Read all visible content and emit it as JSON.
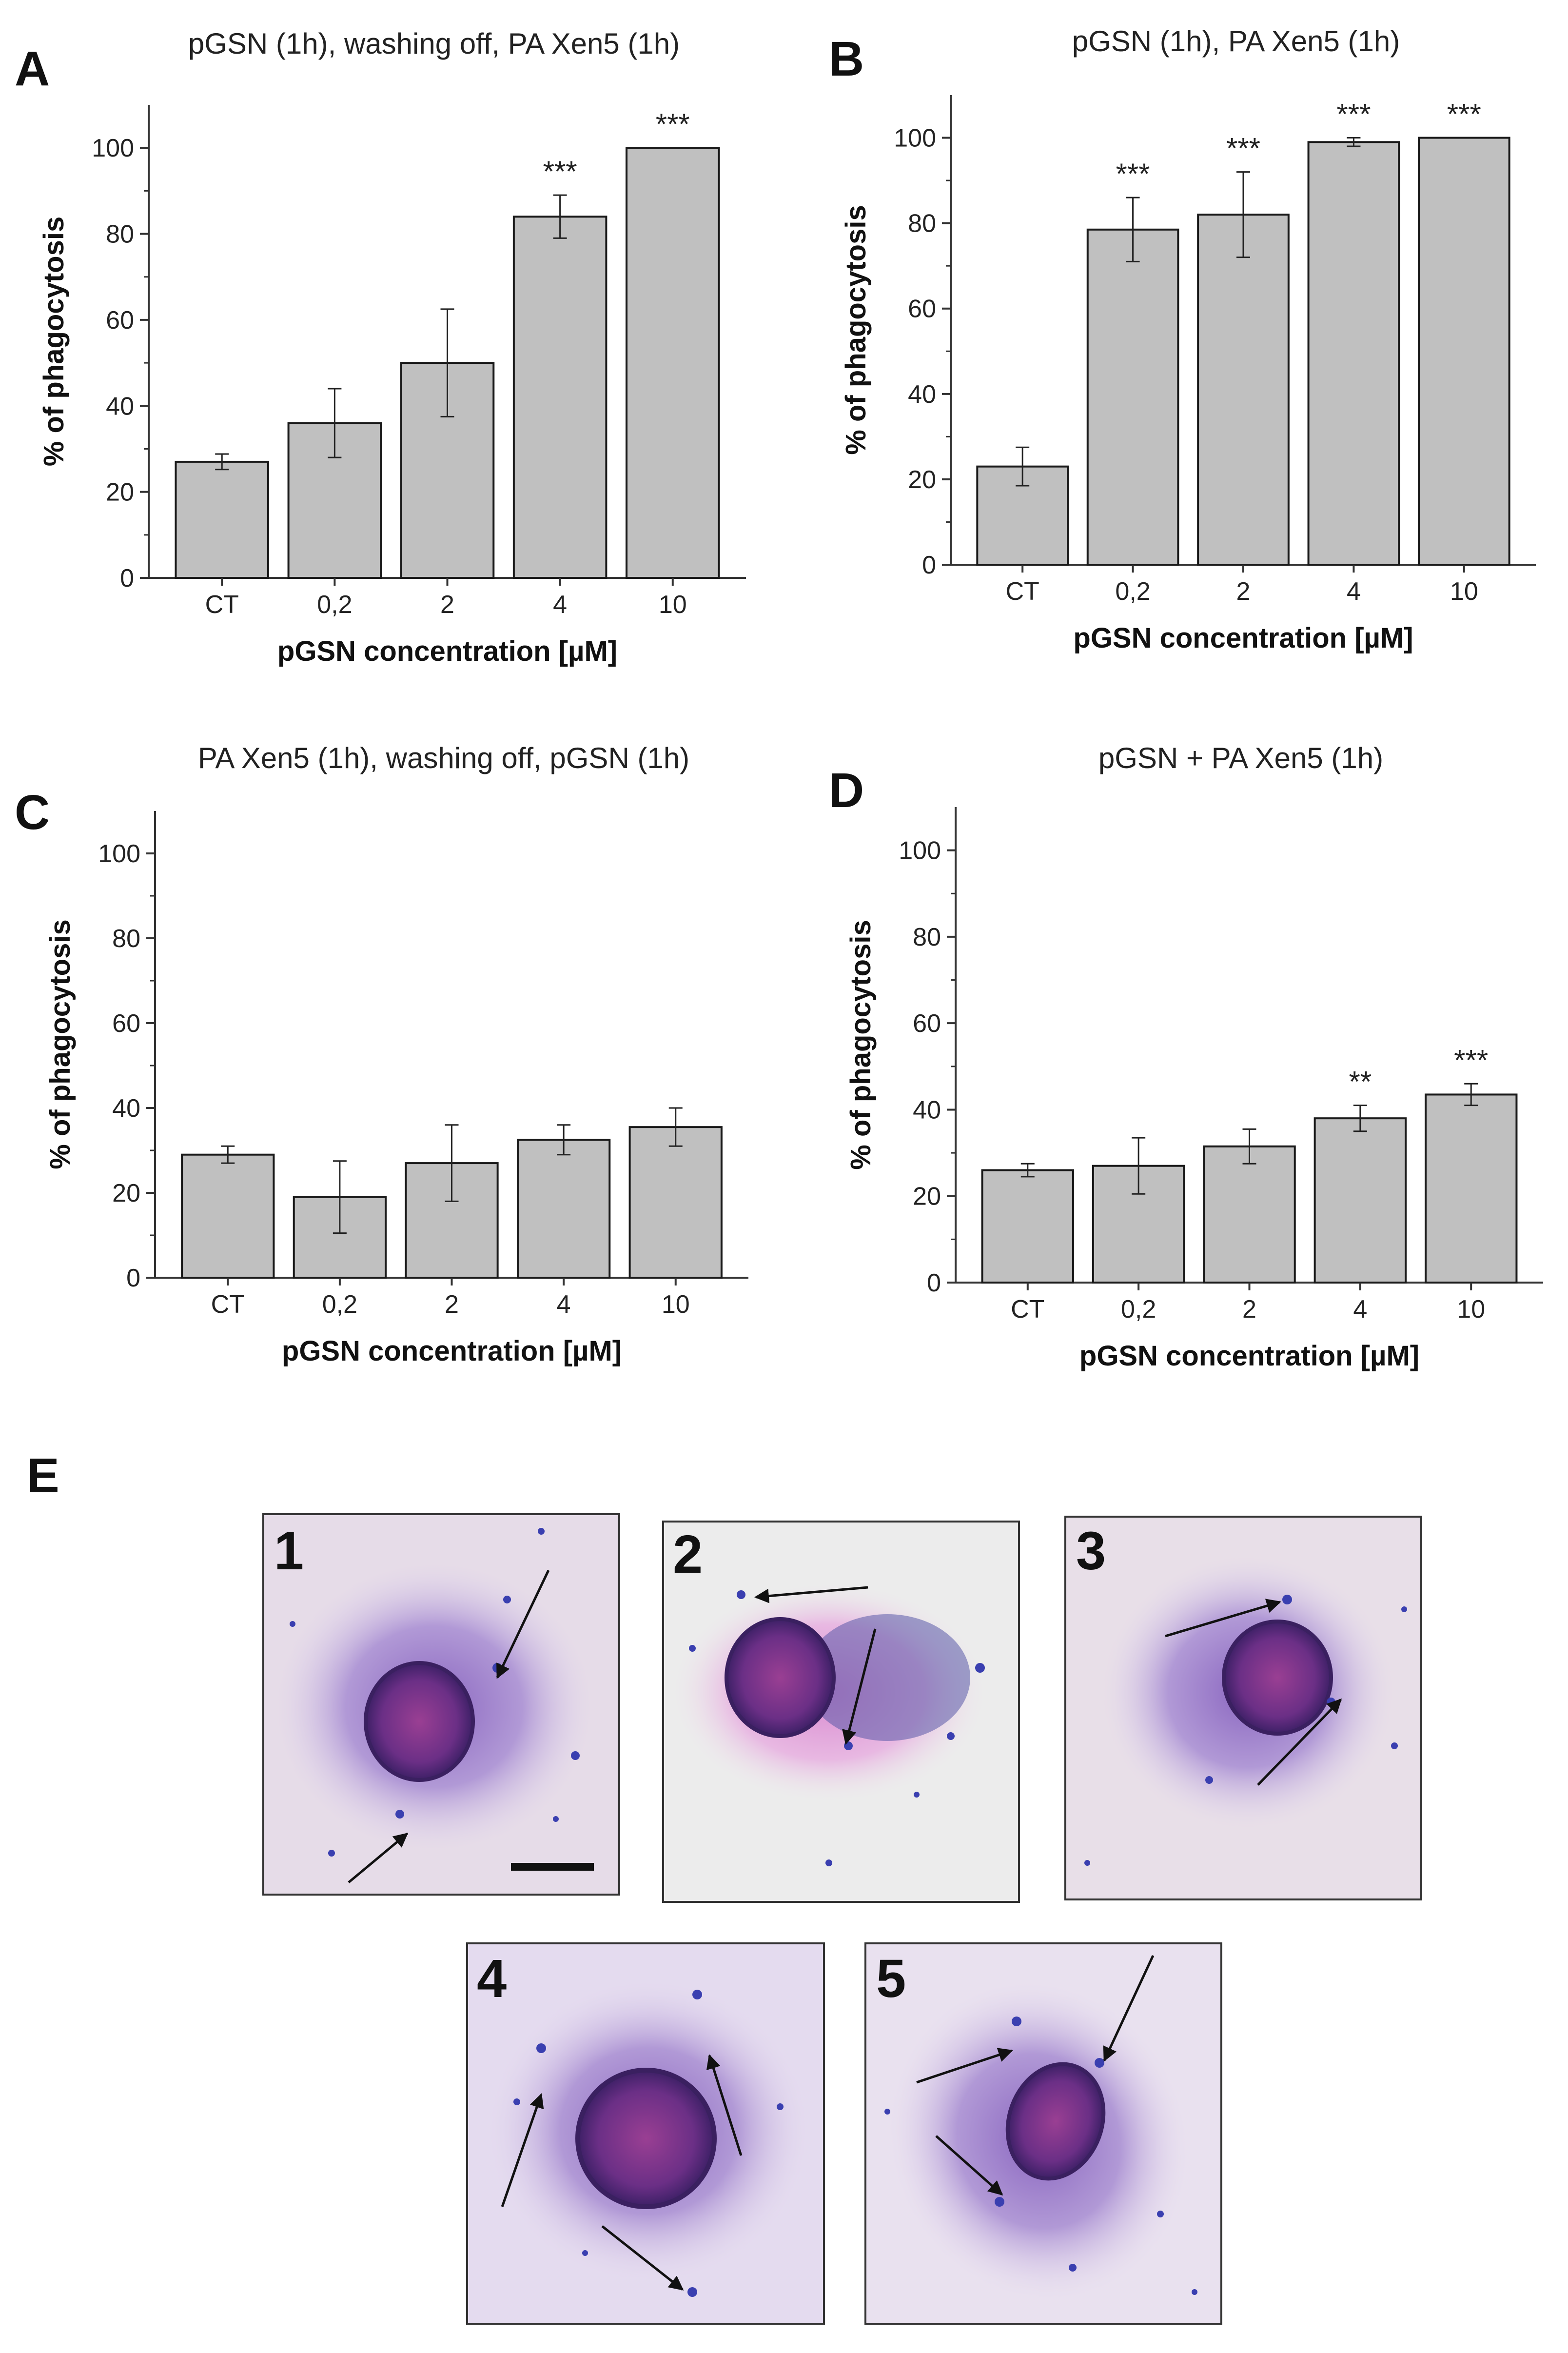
{
  "chart_data": [
    {
      "panel": "A",
      "type": "bar",
      "title": "pGSN (1h),  washing off, PA Xen5 (1h)",
      "xlabel": "pGSN concentration [µM]",
      "ylabel": "% of phagocytosis",
      "ylim": [
        0,
        110
      ],
      "yticks": [
        "0",
        "20",
        "40",
        "60",
        "80",
        "100"
      ],
      "categories": [
        "CT",
        "0,2",
        "2",
        "4",
        "10"
      ],
      "values": [
        27,
        36,
        50,
        84,
        100
      ],
      "errors": [
        1.8,
        8,
        12.5,
        5,
        0
      ],
      "significance": [
        "",
        "",
        "",
        "***",
        "***"
      ]
    },
    {
      "panel": "B",
      "type": "bar",
      "title": "pGSN (1h),  PA Xen5 (1h)",
      "xlabel": "pGSN concentration [µM]",
      "ylabel": "% of phagocytosis",
      "ylim": [
        0,
        110
      ],
      "yticks": [
        "0",
        "20",
        "40",
        "60",
        "80",
        "100"
      ],
      "categories": [
        "CT",
        "0,2",
        "2",
        "4",
        "10"
      ],
      "values": [
        23,
        78.5,
        82,
        99,
        100
      ],
      "errors": [
        4.5,
        7.5,
        10,
        1,
        0
      ],
      "significance": [
        "",
        "***",
        "***",
        "***",
        "***"
      ]
    },
    {
      "panel": "C",
      "type": "bar",
      "title": "PA Xen5 (1h),  washing  off, pGSN (1h)",
      "xlabel": "pGSN concentration [µM]",
      "ylabel": "% of phagocytosis",
      "ylim": [
        0,
        110
      ],
      "yticks": [
        "0",
        "20",
        "40",
        "60",
        "80",
        "100"
      ],
      "categories": [
        "CT",
        "0,2",
        "2",
        "4",
        "10"
      ],
      "values": [
        29,
        19,
        27,
        32.5,
        35.5
      ],
      "errors": [
        2,
        8.5,
        9,
        3.5,
        4.5
      ],
      "significance": [
        "",
        "",
        "",
        "",
        ""
      ]
    },
    {
      "panel": "D",
      "type": "bar",
      "title": "pGSN + PA Xen5 (1h)",
      "xlabel": "pGSN concentration [µM]",
      "ylabel": "% of phagocytosis",
      "ylim": [
        0,
        110
      ],
      "yticks": [
        "0",
        "20",
        "40",
        "60",
        "80",
        "100"
      ],
      "categories": [
        "CT",
        "0,2",
        "2",
        "4",
        "10"
      ],
      "values": [
        26,
        27,
        31.5,
        38,
        43.5
      ],
      "errors": [
        1.5,
        6.5,
        4,
        3,
        2.5
      ],
      "significance": [
        "",
        "",
        "",
        "**",
        "***"
      ]
    }
  ],
  "panel_e": {
    "letter": "E",
    "images": [
      "1",
      "2",
      "3",
      "4",
      "5"
    ]
  },
  "colors": {
    "bar_fill": "#c0c0c0",
    "bar_stroke": "#1a1a1a",
    "micrograph_bg": "#e6dce8",
    "cell_cytoplasm": "#a98fd0",
    "nucleus": "#5b2f86",
    "bacteria": "#3a3fb0"
  }
}
